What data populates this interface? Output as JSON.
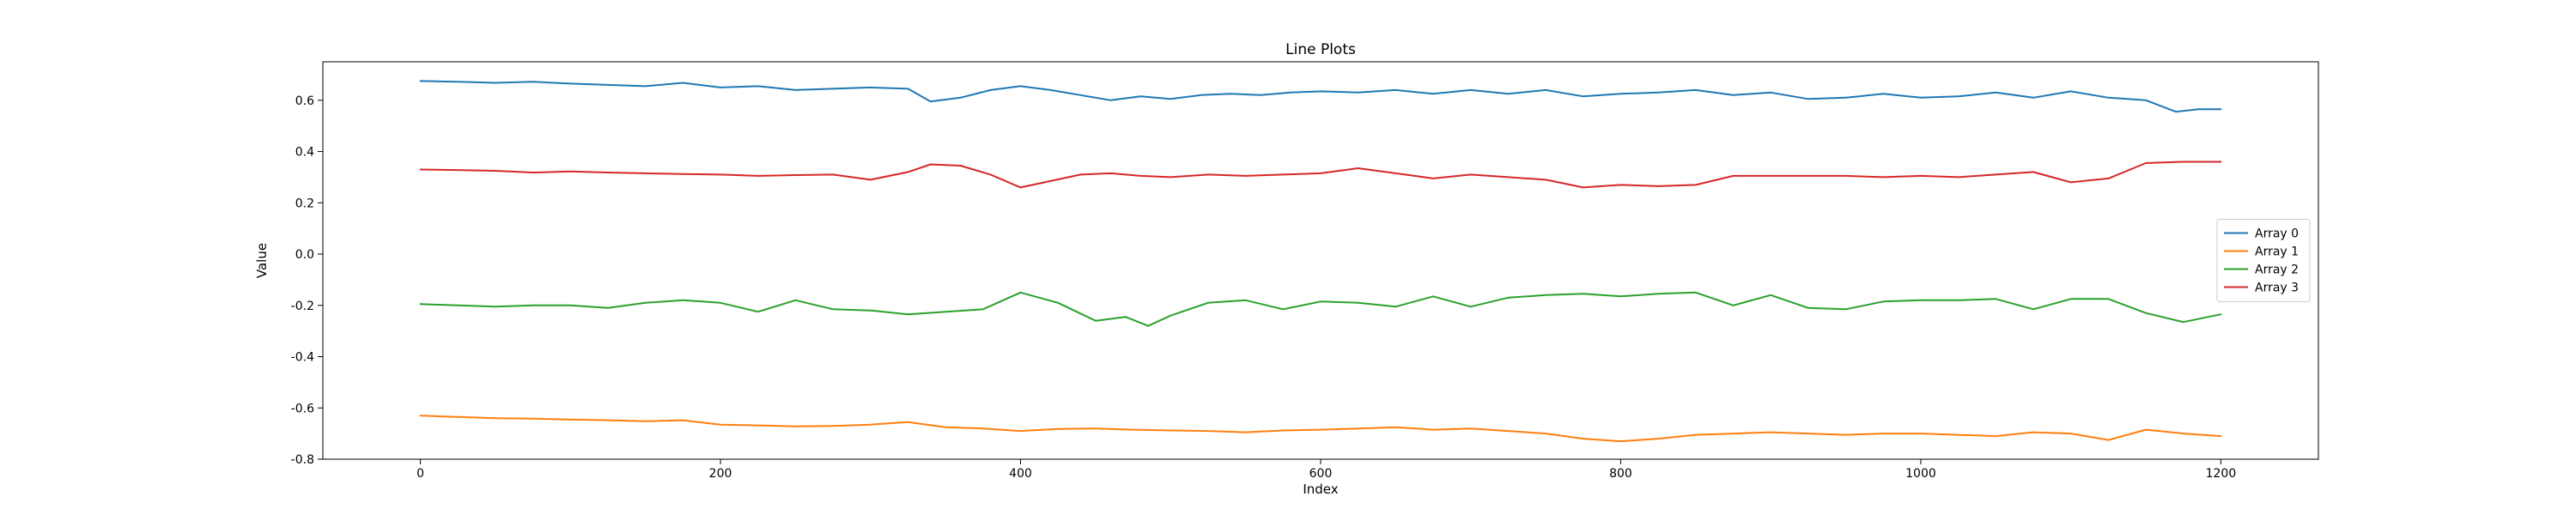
{
  "chart_data": {
    "type": "line",
    "title": "Line Plots",
    "xlabel": "Index",
    "ylabel": "Value",
    "xlim": [
      -65,
      1265
    ],
    "ylim": [
      -0.8,
      0.75
    ],
    "xticks": [
      0,
      200,
      400,
      600,
      800,
      1000,
      1200
    ],
    "yticks": [
      -0.8,
      -0.6,
      -0.4,
      -0.2,
      0.0,
      0.2,
      0.4,
      0.6
    ],
    "grid": false,
    "legend_position": "center-right",
    "series": [
      {
        "name": "Array 0",
        "color": "#1f77b4",
        "x": [
          0,
          25,
          50,
          75,
          100,
          125,
          150,
          175,
          200,
          225,
          250,
          275,
          300,
          325,
          340,
          360,
          380,
          400,
          420,
          440,
          460,
          480,
          500,
          520,
          540,
          560,
          580,
          600,
          625,
          650,
          675,
          700,
          725,
          750,
          775,
          800,
          825,
          850,
          875,
          900,
          925,
          950,
          975,
          1000,
          1025,
          1050,
          1075,
          1100,
          1125,
          1150,
          1170,
          1185,
          1200
        ],
        "values": [
          0.675,
          0.672,
          0.668,
          0.672,
          0.665,
          0.66,
          0.655,
          0.668,
          0.65,
          0.655,
          0.64,
          0.645,
          0.65,
          0.645,
          0.595,
          0.61,
          0.64,
          0.655,
          0.64,
          0.62,
          0.6,
          0.615,
          0.605,
          0.62,
          0.625,
          0.62,
          0.63,
          0.635,
          0.63,
          0.64,
          0.625,
          0.64,
          0.625,
          0.64,
          0.615,
          0.625,
          0.63,
          0.64,
          0.62,
          0.63,
          0.605,
          0.61,
          0.625,
          0.61,
          0.615,
          0.63,
          0.61,
          0.635,
          0.61,
          0.6,
          0.555,
          0.565,
          0.565
        ]
      },
      {
        "name": "Array 1",
        "color": "#ff7f0e",
        "x": [
          0,
          25,
          50,
          75,
          100,
          125,
          150,
          175,
          200,
          225,
          250,
          275,
          300,
          325,
          350,
          375,
          400,
          425,
          450,
          475,
          500,
          525,
          550,
          575,
          600,
          625,
          650,
          675,
          700,
          725,
          750,
          775,
          800,
          825,
          850,
          875,
          900,
          925,
          950,
          975,
          1000,
          1025,
          1050,
          1075,
          1100,
          1125,
          1150,
          1175,
          1200
        ],
        "values": [
          -0.63,
          -0.635,
          -0.64,
          -0.642,
          -0.645,
          -0.648,
          -0.652,
          -0.648,
          -0.665,
          -0.668,
          -0.672,
          -0.67,
          -0.665,
          -0.655,
          -0.675,
          -0.68,
          -0.69,
          -0.682,
          -0.68,
          -0.685,
          -0.688,
          -0.69,
          -0.695,
          -0.688,
          -0.685,
          -0.68,
          -0.675,
          -0.685,
          -0.68,
          -0.69,
          -0.7,
          -0.72,
          -0.73,
          -0.72,
          -0.705,
          -0.7,
          -0.695,
          -0.7,
          -0.705,
          -0.7,
          -0.7,
          -0.705,
          -0.71,
          -0.695,
          -0.7,
          -0.725,
          -0.685,
          -0.7,
          -0.71
        ]
      },
      {
        "name": "Array 2",
        "color": "#2ca02c",
        "x": [
          0,
          25,
          50,
          75,
          100,
          125,
          150,
          175,
          200,
          225,
          250,
          275,
          300,
          325,
          350,
          375,
          400,
          425,
          450,
          470,
          485,
          500,
          525,
          550,
          575,
          600,
          625,
          650,
          675,
          700,
          725,
          750,
          775,
          800,
          825,
          850,
          875,
          900,
          925,
          950,
          975,
          1000,
          1025,
          1050,
          1075,
          1100,
          1125,
          1150,
          1175,
          1200
        ],
        "values": [
          -0.195,
          -0.2,
          -0.205,
          -0.2,
          -0.2,
          -0.21,
          -0.19,
          -0.18,
          -0.19,
          -0.225,
          -0.18,
          -0.215,
          -0.22,
          -0.235,
          -0.225,
          -0.215,
          -0.15,
          -0.19,
          -0.26,
          -0.245,
          -0.28,
          -0.24,
          -0.19,
          -0.18,
          -0.215,
          -0.185,
          -0.19,
          -0.205,
          -0.165,
          -0.205,
          -0.17,
          -0.16,
          -0.155,
          -0.165,
          -0.155,
          -0.15,
          -0.2,
          -0.16,
          -0.21,
          -0.215,
          -0.185,
          -0.18,
          -0.18,
          -0.175,
          -0.215,
          -0.175,
          -0.175,
          -0.23,
          -0.265,
          -0.235
        ]
      },
      {
        "name": "Array 3",
        "color": "#d62728",
        "x": [
          0,
          25,
          50,
          75,
          100,
          125,
          150,
          175,
          200,
          225,
          250,
          275,
          300,
          325,
          340,
          360,
          380,
          400,
          420,
          440,
          460,
          480,
          500,
          525,
          550,
          575,
          600,
          625,
          650,
          675,
          700,
          725,
          750,
          775,
          800,
          825,
          850,
          875,
          900,
          925,
          950,
          975,
          1000,
          1025,
          1050,
          1075,
          1100,
          1125,
          1150,
          1175,
          1200
        ],
        "values": [
          0.33,
          0.328,
          0.325,
          0.318,
          0.322,
          0.318,
          0.315,
          0.312,
          0.31,
          0.305,
          0.308,
          0.31,
          0.29,
          0.32,
          0.35,
          0.345,
          0.31,
          0.26,
          0.285,
          0.31,
          0.315,
          0.305,
          0.3,
          0.31,
          0.305,
          0.31,
          0.315,
          0.335,
          0.315,
          0.295,
          0.31,
          0.3,
          0.29,
          0.26,
          0.27,
          0.265,
          0.27,
          0.305,
          0.305,
          0.305,
          0.305,
          0.3,
          0.305,
          0.3,
          0.31,
          0.32,
          0.28,
          0.295,
          0.355,
          0.36,
          0.36
        ]
      }
    ]
  }
}
